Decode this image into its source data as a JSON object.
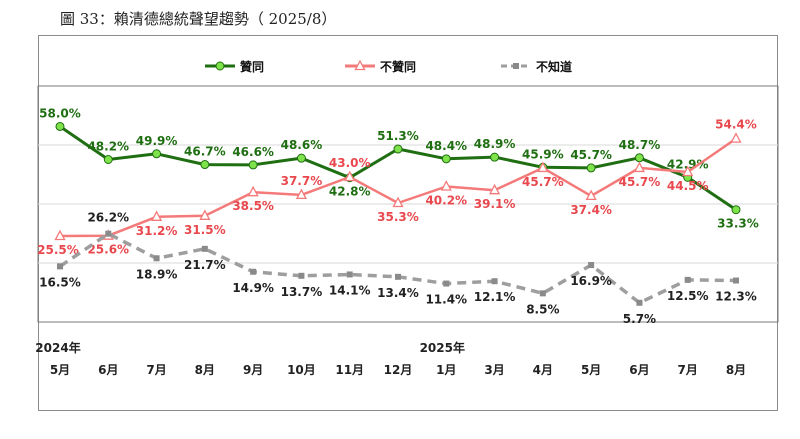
{
  "figure_title": "圖 33：賴清德總統聲望趨勢（ 2025/8）",
  "year_labels": [
    {
      "text": "2024年",
      "at_index": 0
    },
    {
      "text": "2025年",
      "at_index": 8
    }
  ],
  "chart_data": {
    "type": "line",
    "categories": [
      "5月",
      "6月",
      "7月",
      "8月",
      "9月",
      "10月",
      "11月",
      "12月",
      "1月",
      "3月",
      "4月",
      "5月",
      "6月",
      "7月",
      "8月"
    ],
    "title": "",
    "xlabel": "",
    "ylabel": "",
    "ylim": [
      0,
      70
    ],
    "grid": "horizontal",
    "legend_position": "top-center",
    "series": [
      {
        "name": "贊同",
        "color": "#1f6e12",
        "marker_color": "#7ee24b",
        "marker": "circle",
        "dashed": false,
        "values": [
          58.0,
          48.2,
          49.9,
          46.7,
          46.6,
          48.6,
          42.8,
          51.3,
          48.4,
          48.9,
          45.9,
          45.7,
          48.7,
          42.9,
          33.3
        ],
        "labels": [
          "58.0%",
          "48.2%",
          "49.9%",
          "46.7%",
          "46.6%",
          "48.6%",
          "42.8%",
          "51.3%",
          "48.4%",
          "48.9%",
          "45.9%",
          "45.7%",
          "48.7%",
          "42.9%",
          "33.3%"
        ]
      },
      {
        "name": "不贊同",
        "color": "#f47a7a",
        "marker_color": "#f47a7a",
        "marker": "triangle",
        "dashed": false,
        "values": [
          25.5,
          25.6,
          31.2,
          31.5,
          38.5,
          37.7,
          43.0,
          35.3,
          40.2,
          39.1,
          45.7,
          37.4,
          45.7,
          44.5,
          54.4
        ],
        "labels": [
          "25.5%",
          "25.6%",
          "31.2%",
          "31.5%",
          "38.5%",
          "37.7%",
          "43.0%",
          "35.3%",
          "40.2%",
          "39.1%",
          "45.7%",
          "37.4%",
          "45.7%",
          "44.5%",
          "54.4%"
        ]
      },
      {
        "name": "不知道",
        "color": "#9e9e9e",
        "marker_color": "#8a8a8a",
        "marker": "square",
        "dashed": true,
        "values": [
          16.5,
          26.2,
          18.9,
          21.7,
          14.9,
          13.7,
          14.1,
          13.4,
          11.4,
          12.1,
          8.5,
          16.9,
          5.7,
          12.5,
          12.3
        ],
        "labels": [
          "16.5%",
          "26.2%",
          "18.9%",
          "21.7%",
          "14.9%",
          "13.7%",
          "14.1%",
          "13.4%",
          "11.4%",
          "12.1%",
          "8.5%",
          "16.9%",
          "5.7%",
          "12.5%",
          "12.3%"
        ]
      }
    ]
  }
}
